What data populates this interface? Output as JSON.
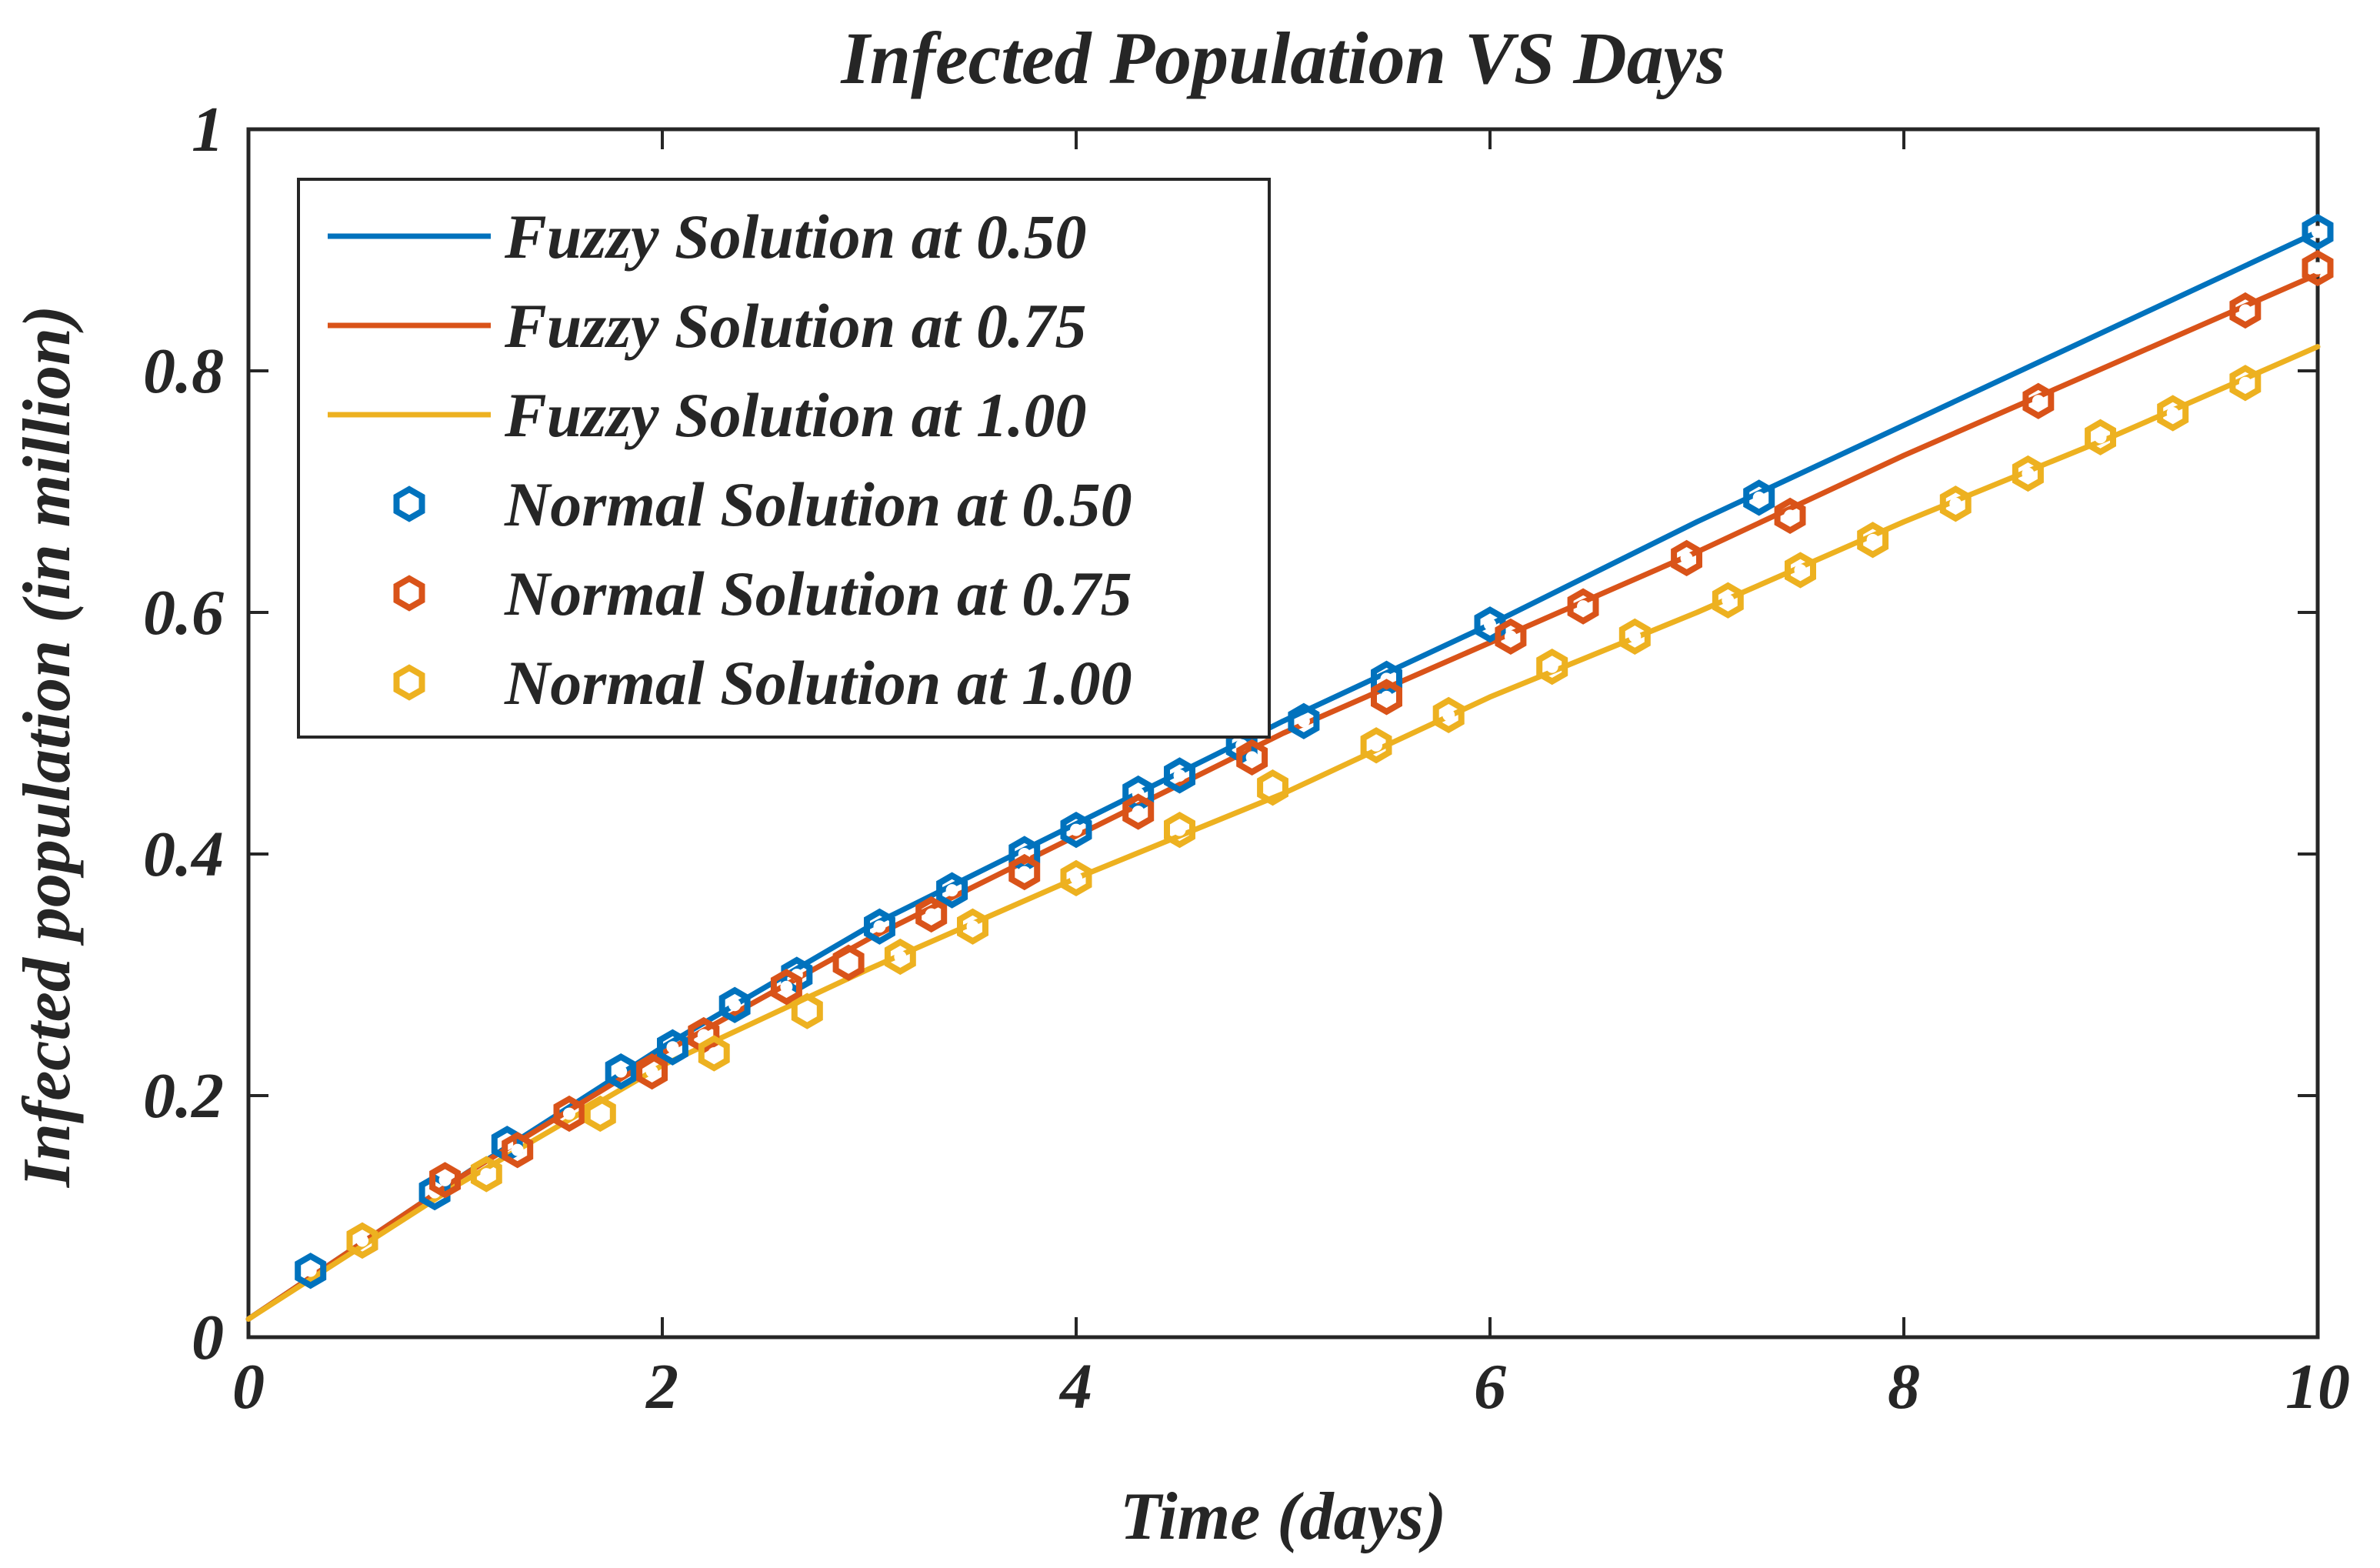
{
  "chart_data": {
    "type": "line",
    "title": "Infected Population VS Days",
    "xlabel": "Time (days)",
    "ylabel": "Infected population (in million)",
    "xlim": [
      0,
      10
    ],
    "ylim": [
      0,
      1
    ],
    "xticks": [
      0,
      2,
      4,
      6,
      8,
      10
    ],
    "xtick_labels": [
      "0",
      "2",
      "4",
      "6",
      "8",
      "10"
    ],
    "yticks": [
      0,
      0.2,
      0.4,
      0.6,
      0.8,
      1
    ],
    "ytick_labels": [
      "0",
      "0.2",
      "0.4",
      "0.6",
      "0.8",
      "1"
    ],
    "grid": false,
    "legend_position": "top-left",
    "series": [
      {
        "name": "Fuzzy Solution at 0.50",
        "kind": "line",
        "color": "#0072BD",
        "x": [
          0,
          1,
          2,
          3,
          4,
          5,
          6,
          7,
          8,
          9,
          10
        ],
        "y": [
          0.015,
          0.13,
          0.24,
          0.34,
          0.425,
          0.51,
          0.59,
          0.675,
          0.755,
          0.835,
          0.915
        ]
      },
      {
        "name": "Fuzzy Solution at 0.75",
        "kind": "line",
        "color": "#D95319",
        "x": [
          0,
          1,
          2,
          3,
          4,
          5,
          6,
          7,
          8,
          9,
          10
        ],
        "y": [
          0.015,
          0.13,
          0.235,
          0.33,
          0.415,
          0.5,
          0.575,
          0.65,
          0.73,
          0.805,
          0.88
        ]
      },
      {
        "name": "Fuzzy Solution at 1.00",
        "kind": "line",
        "color": "#EDB120",
        "x": [
          0,
          1,
          2,
          3,
          4,
          5,
          6,
          7,
          8,
          9,
          10
        ],
        "y": [
          0.015,
          0.125,
          0.225,
          0.305,
          0.38,
          0.45,
          0.53,
          0.6,
          0.675,
          0.745,
          0.82
        ]
      },
      {
        "name": "Normal Solution at 0.50",
        "kind": "marker",
        "color": "#0072BD",
        "x": [
          0.3,
          0.9,
          1.25,
          1.8,
          2.05,
          2.35,
          2.65,
          3.05,
          3.4,
          3.75,
          4.0,
          4.3,
          4.5,
          4.8,
          5.1,
          5.5,
          6.0,
          7.3,
          10.0
        ],
        "y": [
          0.055,
          0.12,
          0.16,
          0.22,
          0.24,
          0.275,
          0.3,
          0.34,
          0.37,
          0.4,
          0.42,
          0.45,
          0.465,
          0.49,
          0.51,
          0.545,
          0.59,
          0.695,
          0.915
        ]
      },
      {
        "name": "Normal Solution at 0.75",
        "kind": "marker",
        "color": "#D95319",
        "x": [
          0.55,
          0.95,
          1.3,
          1.55,
          1.95,
          2.2,
          2.6,
          2.9,
          3.3,
          3.75,
          4.3,
          4.85,
          5.5,
          6.1,
          6.45,
          6.95,
          7.45,
          8.65,
          9.65,
          10.0
        ],
        "y": [
          0.08,
          0.13,
          0.155,
          0.185,
          0.22,
          0.25,
          0.29,
          0.31,
          0.35,
          0.385,
          0.435,
          0.48,
          0.53,
          0.58,
          0.605,
          0.645,
          0.68,
          0.775,
          0.85,
          0.885
        ]
      },
      {
        "name": "Normal Solution at 1.00",
        "kind": "marker",
        "color": "#EDB120",
        "x": [
          0.55,
          1.15,
          1.7,
          2.25,
          2.7,
          3.15,
          3.5,
          4.0,
          4.5,
          4.95,
          5.45,
          5.8,
          6.3,
          6.7,
          7.15,
          7.5,
          7.85,
          8.25,
          8.6,
          8.95,
          9.3,
          9.65
        ],
        "y": [
          0.08,
          0.135,
          0.185,
          0.235,
          0.27,
          0.315,
          0.34,
          0.38,
          0.42,
          0.455,
          0.49,
          0.515,
          0.555,
          0.58,
          0.61,
          0.635,
          0.66,
          0.69,
          0.715,
          0.745,
          0.765,
          0.79
        ]
      }
    ]
  }
}
